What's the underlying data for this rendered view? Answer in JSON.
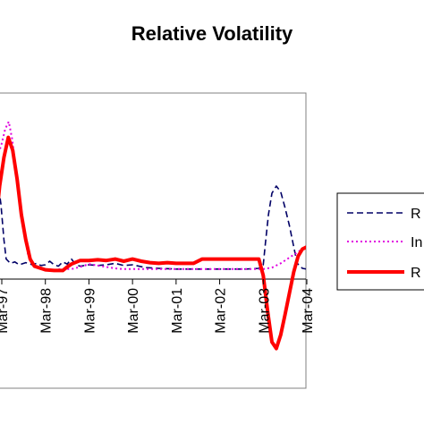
{
  "chart_data": {
    "type": "line",
    "title": "Relative Volatility",
    "xlabel": "",
    "ylabel": "",
    "x_ticks": [
      "Mar-97",
      "Mar-98",
      "Mar-99",
      "Mar-00",
      "Mar-01",
      "Mar-02",
      "Mar-03",
      "Mar-04"
    ],
    "x_domain": [
      0,
      7
    ],
    "ylim": [
      -1.2,
      2.4
    ],
    "grid": false,
    "legend_position": "right",
    "series": [
      {
        "name": "R",
        "style": "dashed",
        "color": "#000066",
        "points": [
          [
            -0.1,
            1.4
          ],
          [
            -0.02,
            1.05
          ],
          [
            0.05,
            0.55
          ],
          [
            0.1,
            0.28
          ],
          [
            0.2,
            0.22
          ],
          [
            0.3,
            0.24
          ],
          [
            0.4,
            0.2
          ],
          [
            0.55,
            0.23
          ],
          [
            0.7,
            0.2
          ],
          [
            0.8,
            0.22
          ],
          [
            0.9,
            0.19
          ],
          [
            1.0,
            0.2
          ],
          [
            1.1,
            0.25
          ],
          [
            1.2,
            0.2
          ],
          [
            1.3,
            0.18
          ],
          [
            1.4,
            0.24
          ],
          [
            1.5,
            0.21
          ],
          [
            1.6,
            0.28
          ],
          [
            1.7,
            0.2
          ],
          [
            1.8,
            0.18
          ],
          [
            2.0,
            0.2
          ],
          [
            2.2,
            0.19
          ],
          [
            2.4,
            0.2
          ],
          [
            2.6,
            0.22
          ],
          [
            2.8,
            0.19
          ],
          [
            3.0,
            0.2
          ],
          [
            3.3,
            0.16
          ],
          [
            3.6,
            0.15
          ],
          [
            4.0,
            0.14
          ],
          [
            4.4,
            0.14
          ],
          [
            4.8,
            0.14
          ],
          [
            5.2,
            0.14
          ],
          [
            5.6,
            0.14
          ],
          [
            5.9,
            0.15
          ],
          [
            6.0,
            0.2
          ],
          [
            6.05,
            0.5
          ],
          [
            6.12,
            0.9
          ],
          [
            6.2,
            1.2
          ],
          [
            6.3,
            1.3
          ],
          [
            6.4,
            1.22
          ],
          [
            6.5,
            1.0
          ],
          [
            6.6,
            0.75
          ],
          [
            6.7,
            0.45
          ],
          [
            6.78,
            0.22
          ],
          [
            6.9,
            0.15
          ],
          [
            7.0,
            0.14
          ]
        ]
      },
      {
        "name": "In",
        "style": "dotted",
        "color": "#e000e0",
        "points": [
          [
            -0.1,
            1.7
          ],
          [
            0.0,
            1.9
          ],
          [
            0.08,
            2.1
          ],
          [
            0.16,
            2.2
          ],
          [
            0.24,
            1.95
          ],
          [
            0.32,
            1.55
          ],
          [
            0.4,
            1.1
          ],
          [
            0.5,
            0.7
          ],
          [
            0.6,
            0.35
          ],
          [
            0.7,
            0.2
          ],
          [
            0.8,
            0.16
          ],
          [
            1.0,
            0.14
          ],
          [
            1.2,
            0.13
          ],
          [
            1.4,
            0.14
          ],
          [
            1.6,
            0.14
          ],
          [
            1.8,
            0.17
          ],
          [
            2.0,
            0.21
          ],
          [
            2.2,
            0.19
          ],
          [
            2.4,
            0.17
          ],
          [
            2.6,
            0.15
          ],
          [
            2.8,
            0.14
          ],
          [
            3.0,
            0.14
          ],
          [
            3.4,
            0.14
          ],
          [
            3.8,
            0.14
          ],
          [
            4.2,
            0.14
          ],
          [
            4.6,
            0.14
          ],
          [
            5.0,
            0.14
          ],
          [
            5.4,
            0.14
          ],
          [
            5.8,
            0.14
          ],
          [
            6.0,
            0.14
          ],
          [
            6.2,
            0.16
          ],
          [
            6.4,
            0.22
          ],
          [
            6.6,
            0.3
          ],
          [
            6.8,
            0.38
          ],
          [
            6.95,
            0.44
          ],
          [
            7.0,
            0.45
          ]
        ]
      },
      {
        "name": "R",
        "style": "solid",
        "color": "#ff0000",
        "points": [
          [
            -0.1,
            1.0
          ],
          [
            -0.05,
            1.3
          ],
          [
            0.05,
            1.7
          ],
          [
            0.15,
            1.98
          ],
          [
            0.25,
            1.8
          ],
          [
            0.35,
            1.4
          ],
          [
            0.45,
            0.9
          ],
          [
            0.55,
            0.55
          ],
          [
            0.65,
            0.28
          ],
          [
            0.75,
            0.18
          ],
          [
            1.0,
            0.13
          ],
          [
            1.2,
            0.12
          ],
          [
            1.4,
            0.12
          ],
          [
            1.5,
            0.17
          ],
          [
            1.6,
            0.21
          ],
          [
            1.8,
            0.26
          ],
          [
            2.0,
            0.26
          ],
          [
            2.2,
            0.27
          ],
          [
            2.4,
            0.26
          ],
          [
            2.6,
            0.28
          ],
          [
            2.8,
            0.25
          ],
          [
            3.0,
            0.28
          ],
          [
            3.2,
            0.25
          ],
          [
            3.4,
            0.23
          ],
          [
            3.6,
            0.22
          ],
          [
            3.8,
            0.23
          ],
          [
            4.0,
            0.22
          ],
          [
            4.2,
            0.22
          ],
          [
            4.4,
            0.22
          ],
          [
            4.6,
            0.28
          ],
          [
            4.8,
            0.28
          ],
          [
            5.0,
            0.28
          ],
          [
            5.2,
            0.28
          ],
          [
            5.4,
            0.28
          ],
          [
            5.6,
            0.28
          ],
          [
            5.8,
            0.28
          ],
          [
            5.9,
            0.28
          ],
          [
            6.0,
            0.05
          ],
          [
            6.1,
            -0.45
          ],
          [
            6.2,
            -0.88
          ],
          [
            6.3,
            -0.97
          ],
          [
            6.4,
            -0.78
          ],
          [
            6.5,
            -0.5
          ],
          [
            6.6,
            -0.2
          ],
          [
            6.7,
            0.1
          ],
          [
            6.8,
            0.32
          ],
          [
            6.9,
            0.42
          ],
          [
            7.0,
            0.45
          ]
        ]
      }
    ]
  }
}
